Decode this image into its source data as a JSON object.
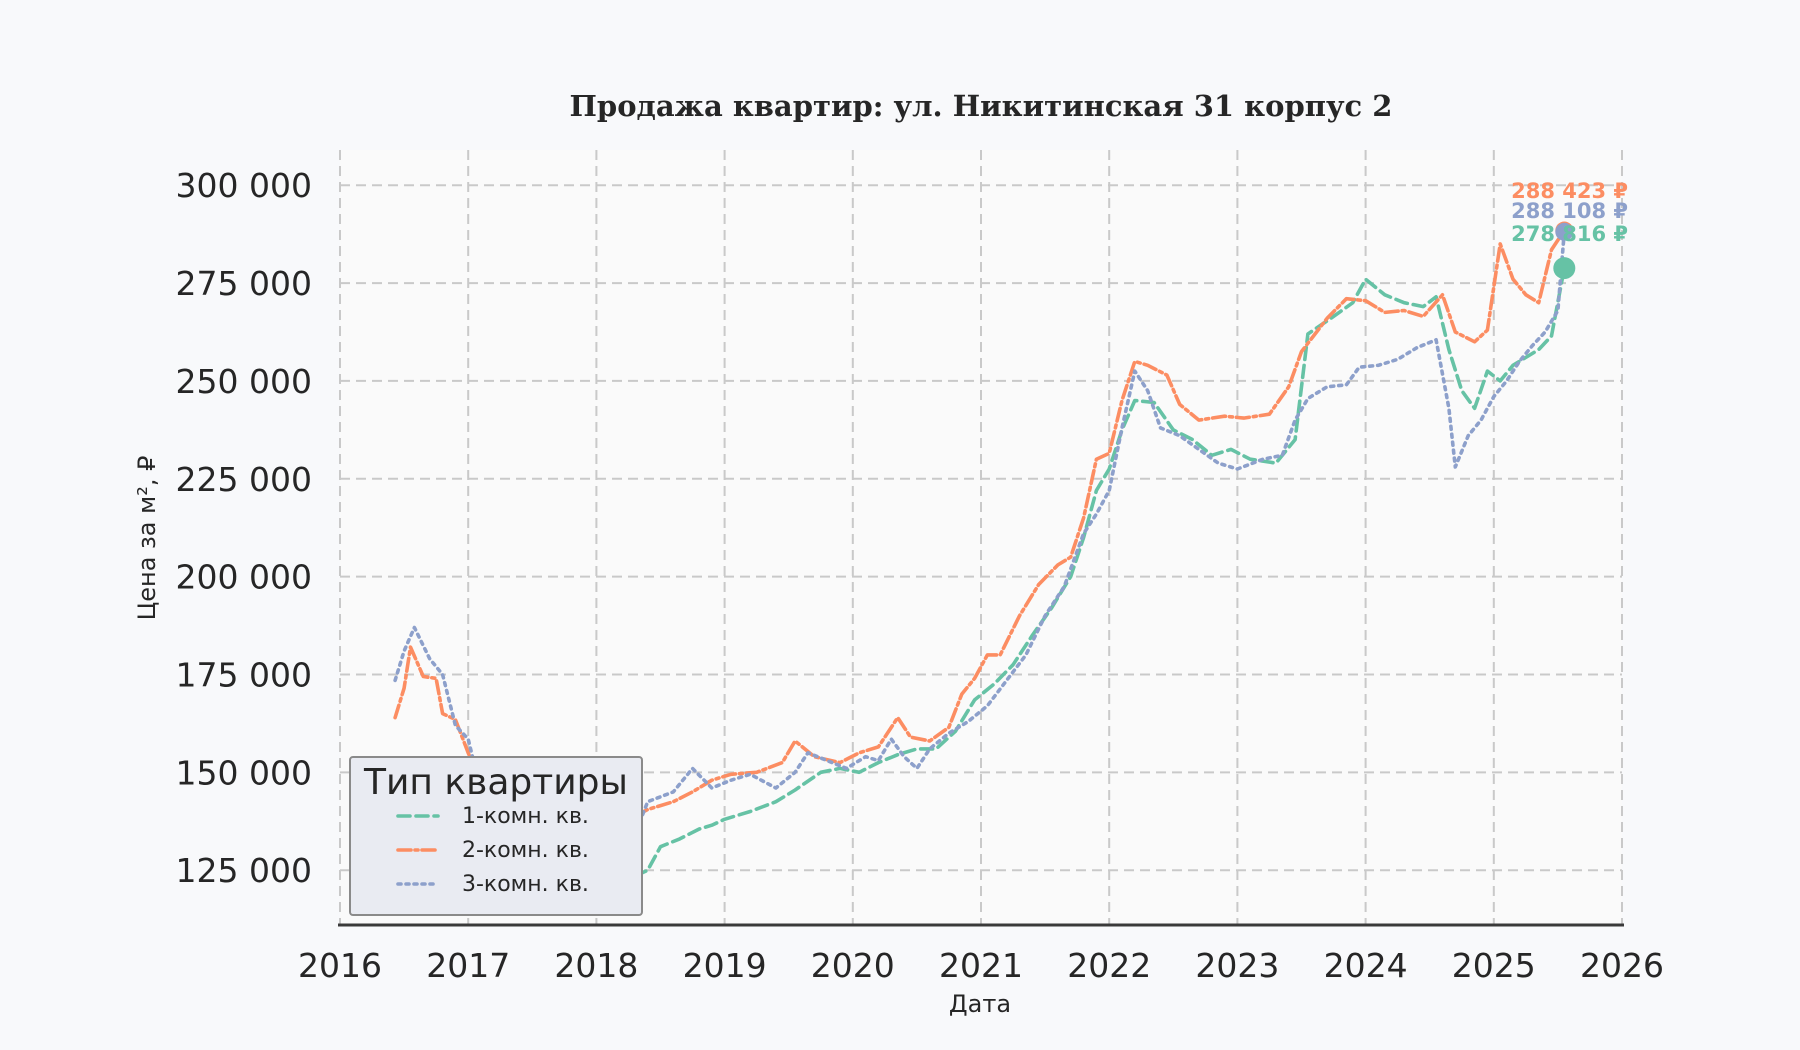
{
  "chart_data": {
    "type": "line",
    "title": "Продажа квартир: ул. Никитинская 31 корпус 2",
    "xlabel": "Дата",
    "ylabel": "Цена за м², ₽",
    "x_ticks": [
      "2016",
      "2017",
      "2018",
      "2019",
      "2020",
      "2021",
      "2022",
      "2023",
      "2024",
      "2025",
      "2026"
    ],
    "y_ticks": [
      "125 000",
      "150 000",
      "175 000",
      "200 000",
      "225 000",
      "250 000",
      "275 000",
      "300 000"
    ],
    "xlim": [
      2016.0,
      2026.0
    ],
    "ylim": [
      111000,
      309000
    ],
    "grid": true,
    "legend": {
      "title": "Тип квартиры",
      "placement": "lower-left"
    },
    "series": [
      {
        "name": "1-комн. кв.",
        "color": "#66c2a5",
        "dash": "dashed",
        "points": [
          [
            2018.3,
            123500
          ],
          [
            2018.4,
            125000
          ],
          [
            2018.5,
            131000
          ],
          [
            2018.65,
            133000
          ],
          [
            2018.8,
            135500
          ],
          [
            2018.9,
            136500
          ],
          [
            2019.0,
            138000
          ],
          [
            2019.2,
            140000
          ],
          [
            2019.4,
            142500
          ],
          [
            2019.55,
            145500
          ],
          [
            2019.75,
            150000
          ],
          [
            2019.9,
            151000
          ],
          [
            2020.05,
            150000
          ],
          [
            2020.2,
            152500
          ],
          [
            2020.35,
            154500
          ],
          [
            2020.5,
            156000
          ],
          [
            2020.65,
            156000
          ],
          [
            2020.8,
            160500
          ],
          [
            2020.95,
            168500
          ],
          [
            2021.1,
            172500
          ],
          [
            2021.25,
            177500
          ],
          [
            2021.4,
            185000
          ],
          [
            2021.55,
            192000
          ],
          [
            2021.7,
            200000
          ],
          [
            2021.8,
            210000
          ],
          [
            2021.9,
            222000
          ],
          [
            2022.0,
            227500
          ],
          [
            2022.1,
            237500
          ],
          [
            2022.2,
            245000
          ],
          [
            2022.35,
            244500
          ],
          [
            2022.5,
            237500
          ],
          [
            2022.65,
            235000
          ],
          [
            2022.8,
            231000
          ],
          [
            2022.95,
            232500
          ],
          [
            2023.1,
            230000
          ],
          [
            2023.3,
            229000
          ],
          [
            2023.45,
            235000
          ],
          [
            2023.55,
            262000
          ],
          [
            2023.75,
            266500
          ],
          [
            2023.9,
            270000
          ],
          [
            2024.0,
            276000
          ],
          [
            2024.15,
            272000
          ],
          [
            2024.3,
            270000
          ],
          [
            2024.45,
            269000
          ],
          [
            2024.55,
            271500
          ],
          [
            2024.65,
            258000
          ],
          [
            2024.75,
            247500
          ],
          [
            2024.85,
            243000
          ],
          [
            2024.95,
            252500
          ],
          [
            2025.05,
            250000
          ],
          [
            2025.15,
            254000
          ],
          [
            2025.25,
            256000
          ],
          [
            2025.35,
            258000
          ],
          [
            2025.45,
            261500
          ],
          [
            2025.55,
            278816
          ]
        ]
      },
      {
        "name": "2-комн. кв.",
        "color": "#fc8d62",
        "dash": "dashdot",
        "points": [
          [
            2016.43,
            164000
          ],
          [
            2016.5,
            171500
          ],
          [
            2016.55,
            182000
          ],
          [
            2016.65,
            174500
          ],
          [
            2016.75,
            174000
          ],
          [
            2016.8,
            165000
          ],
          [
            2016.9,
            163500
          ],
          [
            2017.0,
            155000
          ],
          [
            2017.1,
            147000
          ],
          [
            2017.3,
            142500
          ],
          [
            2017.5,
            138500
          ],
          [
            2017.7,
            136000
          ],
          [
            2017.9,
            137500
          ],
          [
            2018.1,
            135500
          ],
          [
            2018.25,
            138000
          ],
          [
            2018.4,
            140500
          ],
          [
            2018.6,
            142500
          ],
          [
            2018.75,
            145000
          ],
          [
            2018.9,
            148000
          ],
          [
            2019.05,
            149500
          ],
          [
            2019.25,
            150000
          ],
          [
            2019.45,
            152500
          ],
          [
            2019.55,
            158000
          ],
          [
            2019.7,
            154000
          ],
          [
            2019.9,
            152500
          ],
          [
            2020.05,
            155000
          ],
          [
            2020.2,
            156500
          ],
          [
            2020.35,
            164000
          ],
          [
            2020.45,
            159000
          ],
          [
            2020.6,
            158000
          ],
          [
            2020.75,
            161500
          ],
          [
            2020.85,
            170000
          ],
          [
            2020.95,
            174000
          ],
          [
            2021.05,
            180000
          ],
          [
            2021.15,
            180000
          ],
          [
            2021.3,
            190000
          ],
          [
            2021.45,
            198000
          ],
          [
            2021.6,
            203000
          ],
          [
            2021.7,
            205000
          ],
          [
            2021.8,
            215000
          ],
          [
            2021.9,
            230000
          ],
          [
            2022.0,
            231500
          ],
          [
            2022.1,
            245000
          ],
          [
            2022.2,
            255000
          ],
          [
            2022.3,
            254000
          ],
          [
            2022.45,
            251500
          ],
          [
            2022.55,
            244000
          ],
          [
            2022.7,
            240000
          ],
          [
            2022.9,
            241000
          ],
          [
            2023.05,
            240500
          ],
          [
            2023.25,
            241500
          ],
          [
            2023.4,
            248500
          ],
          [
            2023.5,
            257500
          ],
          [
            2023.7,
            266000
          ],
          [
            2023.85,
            271000
          ],
          [
            2024.0,
            270500
          ],
          [
            2024.15,
            267500
          ],
          [
            2024.3,
            268000
          ],
          [
            2024.45,
            266500
          ],
          [
            2024.6,
            272000
          ],
          [
            2024.7,
            262500
          ],
          [
            2024.85,
            260000
          ],
          [
            2024.95,
            263000
          ],
          [
            2025.05,
            285000
          ],
          [
            2025.15,
            276000
          ],
          [
            2025.25,
            272000
          ],
          [
            2025.35,
            270000
          ],
          [
            2025.45,
            283500
          ],
          [
            2025.55,
            288423
          ]
        ]
      },
      {
        "name": "3-комн. кв.",
        "color": "#8da0cb",
        "dash": "dotted",
        "points": [
          [
            2016.43,
            173500
          ],
          [
            2016.5,
            181000
          ],
          [
            2016.58,
            187000
          ],
          [
            2016.7,
            179000
          ],
          [
            2016.8,
            175000
          ],
          [
            2016.9,
            162000
          ],
          [
            2017.0,
            158500
          ],
          [
            2017.1,
            145000
          ],
          [
            2017.3,
            139500
          ],
          [
            2017.55,
            133000
          ],
          [
            2017.75,
            127000
          ],
          [
            2017.95,
            123000
          ],
          [
            2018.1,
            124500
          ],
          [
            2018.25,
            130000
          ],
          [
            2018.4,
            142500
          ],
          [
            2018.6,
            145000
          ],
          [
            2018.75,
            151000
          ],
          [
            2018.9,
            146000
          ],
          [
            2019.05,
            148000
          ],
          [
            2019.2,
            149500
          ],
          [
            2019.4,
            146000
          ],
          [
            2019.55,
            150000
          ],
          [
            2019.65,
            155000
          ],
          [
            2019.8,
            153000
          ],
          [
            2019.95,
            151000
          ],
          [
            2020.1,
            154000
          ],
          [
            2020.2,
            153000
          ],
          [
            2020.3,
            158500
          ],
          [
            2020.4,
            154000
          ],
          [
            2020.5,
            151000
          ],
          [
            2020.6,
            156000
          ],
          [
            2020.75,
            160000
          ],
          [
            2020.9,
            163000
          ],
          [
            2021.05,
            167000
          ],
          [
            2021.2,
            173500
          ],
          [
            2021.35,
            180000
          ],
          [
            2021.5,
            190000
          ],
          [
            2021.65,
            197500
          ],
          [
            2021.8,
            211000
          ],
          [
            2021.9,
            216000
          ],
          [
            2022.0,
            222000
          ],
          [
            2022.1,
            238000
          ],
          [
            2022.2,
            252500
          ],
          [
            2022.3,
            247500
          ],
          [
            2022.4,
            238000
          ],
          [
            2022.55,
            236000
          ],
          [
            2022.7,
            232500
          ],
          [
            2022.85,
            229000
          ],
          [
            2023.0,
            227500
          ],
          [
            2023.2,
            230000
          ],
          [
            2023.35,
            231000
          ],
          [
            2023.45,
            240000
          ],
          [
            2023.55,
            245500
          ],
          [
            2023.7,
            248500
          ],
          [
            2023.85,
            249000
          ],
          [
            2023.95,
            253500
          ],
          [
            2024.1,
            254000
          ],
          [
            2024.25,
            255500
          ],
          [
            2024.4,
            258500
          ],
          [
            2024.55,
            260500
          ],
          [
            2024.65,
            243000
          ],
          [
            2024.7,
            228000
          ],
          [
            2024.8,
            236000
          ],
          [
            2024.9,
            240000
          ],
          [
            2025.0,
            246000
          ],
          [
            2025.1,
            250000
          ],
          [
            2025.2,
            255000
          ],
          [
            2025.3,
            259000
          ],
          [
            2025.4,
            262500
          ],
          [
            2025.5,
            268000
          ],
          [
            2025.55,
            288108
          ]
        ]
      }
    ],
    "end_labels": [
      {
        "series": "2-комн. кв.",
        "text": "288 423 ₽",
        "value": 288423
      },
      {
        "series": "3-комн. кв.",
        "text": "288 108 ₽",
        "value": 288108
      },
      {
        "series": "1-комн. кв.",
        "text": "278 816 ₽",
        "value": 278816
      }
    ]
  }
}
